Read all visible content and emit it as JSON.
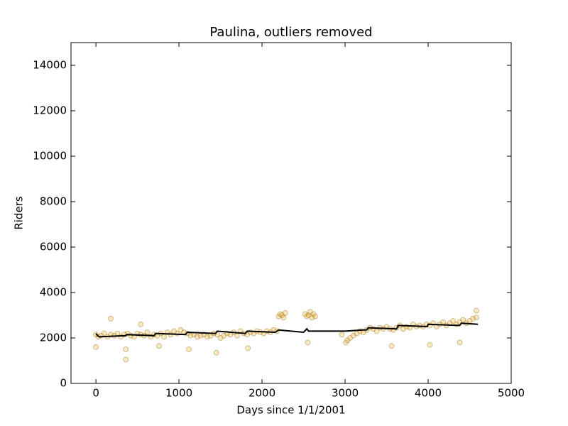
{
  "chart_data": {
    "type": "scatter",
    "title": "Paulina, outliers removed",
    "xlabel": "Days since 1/1/2001",
    "ylabel": "Riders",
    "xlim": [
      -300,
      5000
    ],
    "xticks": [
      0,
      1000,
      2000,
      3000,
      4000,
      5000
    ],
    "ylim": [
      0,
      15000
    ],
    "yticks": [
      0,
      2000,
      4000,
      6000,
      8000,
      10000,
      12000,
      14000
    ],
    "series": [
      {
        "type": "scatter",
        "color": "#e69f00",
        "x": [
          0,
          30,
          60,
          100,
          140,
          180,
          220,
          260,
          300,
          340,
          360,
          380,
          420,
          460,
          500,
          540,
          580,
          620,
          660,
          700,
          740,
          780,
          820,
          860,
          900,
          940,
          980,
          1020,
          1060,
          1100,
          1140,
          1180,
          1220,
          1260,
          1300,
          1340,
          1380,
          1420,
          1460,
          1500,
          1540,
          1580,
          1620,
          1660,
          1700,
          1740,
          1780,
          1820,
          1860,
          1900,
          1940,
          1980,
          2020,
          2060,
          2100,
          2140,
          2180,
          2200,
          2220,
          2240,
          2260,
          2280,
          2520,
          2540,
          2560,
          2580,
          2600,
          2620,
          2640,
          3010,
          3030,
          3060,
          3100,
          3140,
          3180,
          3220,
          3260,
          3300,
          3340,
          3380,
          3420,
          3460,
          3500,
          3540,
          3580,
          3620,
          3660,
          3700,
          3740,
          3780,
          3820,
          3860,
          3900,
          3940,
          3980,
          4020,
          4060,
          4100,
          4140,
          4180,
          4220,
          4260,
          4300,
          4340,
          4380,
          4420,
          4460,
          4500,
          4540,
          4580,
          0,
          360,
          180,
          760,
          1450,
          1830,
          2550,
          3560,
          4020,
          4380,
          4580,
          540,
          1120,
          2960
        ],
        "values": [
          2150,
          2050,
          2100,
          2200,
          2050,
          2150,
          2100,
          2200,
          2050,
          2150,
          1500,
          2200,
          2100,
          2050,
          2200,
          2150,
          2100,
          2250,
          2050,
          2150,
          2100,
          2200,
          2050,
          2250,
          2150,
          2300,
          2200,
          2350,
          2250,
          2200,
          2100,
          2150,
          2050,
          2100,
          2150,
          2050,
          2100,
          2200,
          2150,
          2000,
          2100,
          2200,
          2150,
          2250,
          2100,
          2300,
          2200,
          2150,
          2250,
          2200,
          2300,
          2250,
          2200,
          2300,
          2250,
          2350,
          2300,
          2950,
          3050,
          3000,
          2900,
          3100,
          3050,
          2950,
          3000,
          3150,
          2900,
          3050,
          2950,
          1800,
          1900,
          2000,
          2100,
          2200,
          2300,
          2250,
          2350,
          2450,
          2400,
          2300,
          2450,
          2400,
          2500,
          2400,
          2350,
          2450,
          2550,
          2400,
          2500,
          2450,
          2600,
          2500,
          2550,
          2500,
          2600,
          2550,
          2650,
          2500,
          2600,
          2700,
          2550,
          2650,
          2750,
          2600,
          2700,
          2800,
          2650,
          2750,
          2850,
          2900,
          1600,
          1050,
          2850,
          1650,
          1350,
          1550,
          1800,
          1650,
          1700,
          1800,
          3200,
          2600,
          1500,
          2150
        ]
      },
      {
        "type": "line",
        "color": "#000000",
        "x": [
          0,
          20,
          40,
          360,
          370,
          700,
          720,
          1080,
          1100,
          1440,
          1460,
          1800,
          1820,
          2160,
          2200,
          2500,
          2540,
          2560,
          2600,
          3000,
          3200,
          3260,
          3280,
          3620,
          3640,
          3990,
          4000,
          4380,
          4400,
          4600
        ],
        "values": [
          2200,
          2100,
          2050,
          2100,
          2150,
          2100,
          2200,
          2150,
          2250,
          2200,
          2300,
          2200,
          2300,
          2250,
          2350,
          2250,
          2400,
          2300,
          2300,
          2300,
          2350,
          2350,
          2450,
          2400,
          2550,
          2500,
          2600,
          2550,
          2650,
          2600
        ]
      }
    ]
  }
}
